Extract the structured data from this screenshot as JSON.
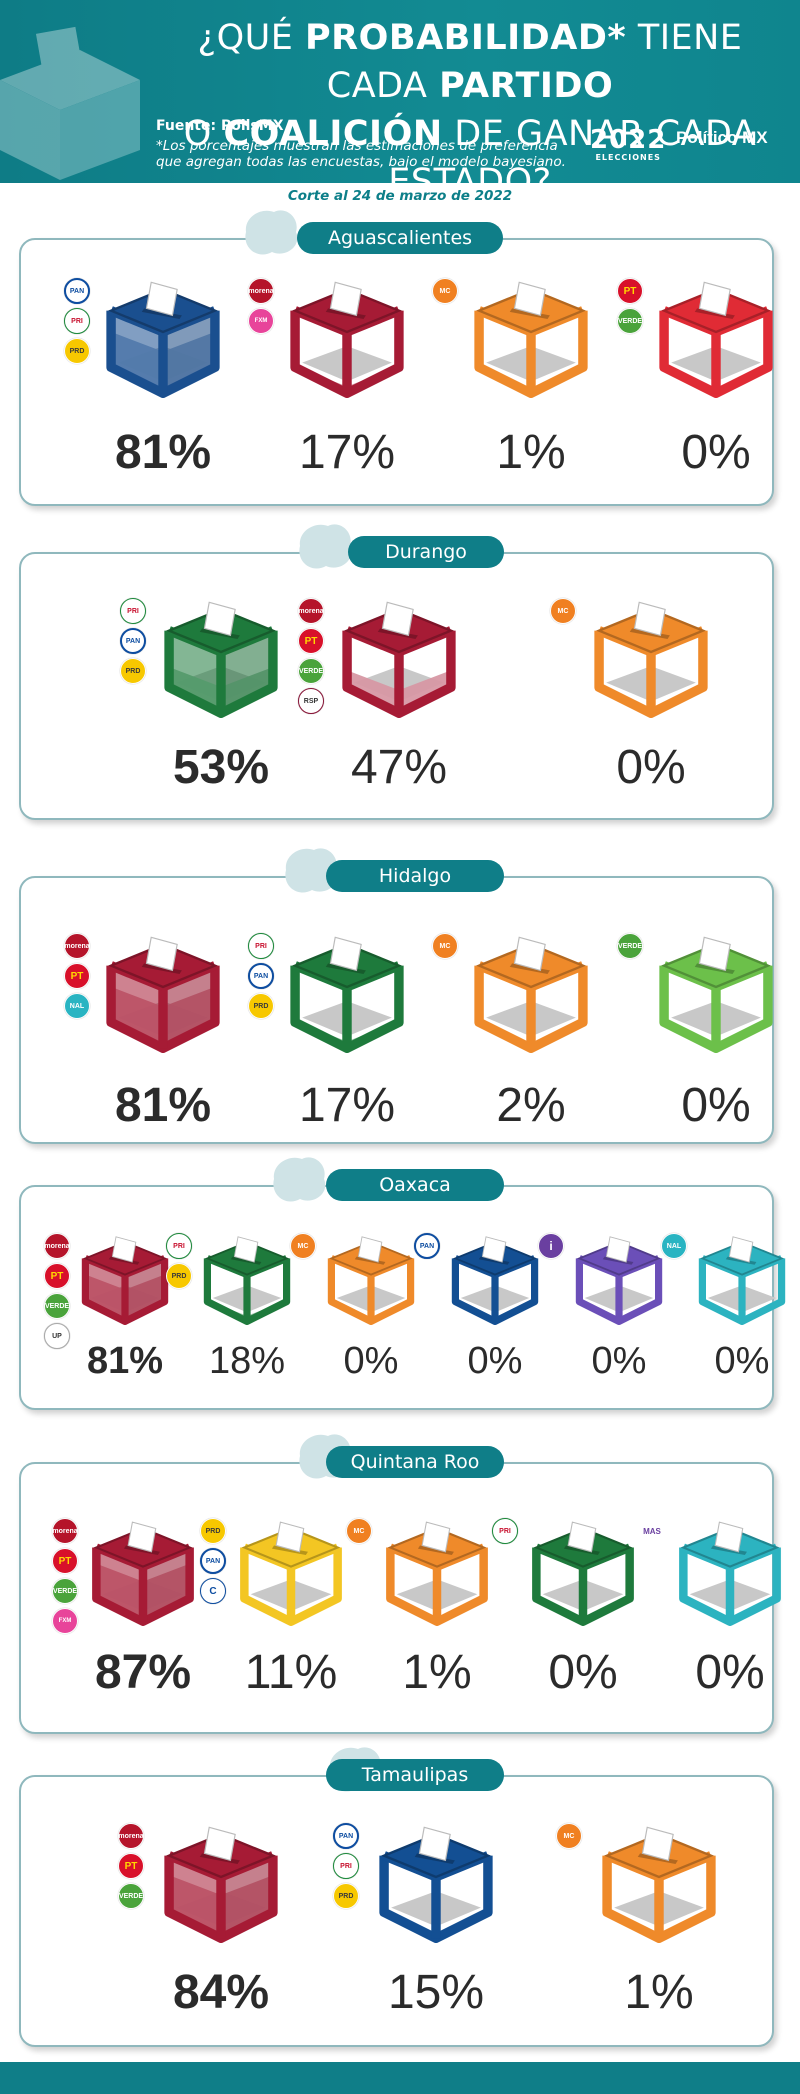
{
  "header": {
    "title_line1_a": "¿QUÉ ",
    "title_line1_b": "PROBABILIDAD*",
    "title_line1_c": " TIENE CADA ",
    "title_line1_d": "PARTIDO",
    "title_line2_a": "O ",
    "title_line2_b": "COALICIÓN",
    "title_line2_c": " DE GANAR CADA ESTADO?",
    "fuente": "Fuente: PollsMX",
    "note": "*Los porcentajes muestran las estimaciones de preferencia que agregan todas las encuestas, bajo el modelo bayesiano.",
    "logo_year": "2022",
    "logo_sub": "ELECCIONES",
    "brand": "Político MX"
  },
  "corte": "Corte al 24 de marzo de 2022",
  "colors": {
    "teal": "#0f7e88",
    "pan_blue": "#1a4f8f",
    "morena_red": "#a61b35",
    "pri_green": "#1e7a3c",
    "mc_orange": "#ef8a2a",
    "pt_red": "#e02b35",
    "verde_green": "#6cc04a",
    "pan_blue2": "#134f93",
    "purple": "#6b4fb8",
    "cyan": "#2cb3c0",
    "yellow": "#f3c623"
  },
  "states": [
    {
      "name": "Aguascalientes",
      "entries": [
        {
          "pct": "81%",
          "fill": 0.81,
          "color": "#1a4f8f",
          "logos": [
            "pan",
            "pri",
            "prd"
          ]
        },
        {
          "pct": "17%",
          "fill": 0.17,
          "color": "#a61b35",
          "logos": [
            "morena",
            "fxm"
          ]
        },
        {
          "pct": "1%",
          "fill": 0.01,
          "color": "#ef8a2a",
          "logos": [
            "mc"
          ]
        },
        {
          "pct": "0%",
          "fill": 0.0,
          "color": "#e02b35",
          "logos": [
            "pt",
            "verde"
          ]
        }
      ]
    },
    {
      "name": "Durango",
      "entries": [
        {
          "pct": "53%",
          "fill": 0.53,
          "color": "#1e7a3c",
          "logos": [
            "pri",
            "pan",
            "prd"
          ]
        },
        {
          "pct": "47%",
          "fill": 0.47,
          "color": "#a61b35",
          "logos": [
            "morena",
            "pt",
            "verde",
            "rsp"
          ]
        },
        {
          "pct": "0%",
          "fill": 0.0,
          "color": "#ef8a2a",
          "logos": [
            "mc"
          ]
        }
      ]
    },
    {
      "name": "Hidalgo",
      "entries": [
        {
          "pct": "81%",
          "fill": 0.81,
          "color": "#a61b35",
          "logos": [
            "morena",
            "pt",
            "nal"
          ]
        },
        {
          "pct": "17%",
          "fill": 0.17,
          "color": "#1e7a3c",
          "logos": [
            "pri",
            "pan",
            "prd"
          ]
        },
        {
          "pct": "2%",
          "fill": 0.02,
          "color": "#ef8a2a",
          "logos": [
            "mc"
          ]
        },
        {
          "pct": "0%",
          "fill": 0.0,
          "color": "#6cc04a",
          "logos": [
            "verde"
          ]
        }
      ]
    },
    {
      "name": "Oaxaca",
      "entries": [
        {
          "pct": "81%",
          "fill": 0.81,
          "color": "#a61b35",
          "logos": [
            "morena",
            "pt",
            "verde",
            "up"
          ]
        },
        {
          "pct": "18%",
          "fill": 0.18,
          "color": "#1e7a3c",
          "logos": [
            "pri",
            "prd"
          ]
        },
        {
          "pct": "0%",
          "fill": 0.0,
          "color": "#ef8a2a",
          "logos": [
            "mc"
          ]
        },
        {
          "pct": "0%",
          "fill": 0.0,
          "color": "#134f93",
          "logos": [
            "pan"
          ]
        },
        {
          "pct": "0%",
          "fill": 0.0,
          "color": "#6b4fb8",
          "logos": [
            "ind"
          ]
        },
        {
          "pct": "0%",
          "fill": 0.0,
          "color": "#2cb3c0",
          "logos": [
            "nal"
          ]
        }
      ]
    },
    {
      "name": "Quintana Roo",
      "entries": [
        {
          "pct": "87%",
          "fill": 0.87,
          "color": "#a61b35",
          "logos": [
            "morena",
            "pt",
            "verde",
            "fxm"
          ]
        },
        {
          "pct": "11%",
          "fill": 0.11,
          "color": "#f3c623",
          "logos": [
            "prd",
            "pan",
            "conf"
          ]
        },
        {
          "pct": "1%",
          "fill": 0.01,
          "color": "#ef8a2a",
          "logos": [
            "mc"
          ]
        },
        {
          "pct": "0%",
          "fill": 0.0,
          "color": "#1e7a3c",
          "logos": [
            "pri"
          ]
        },
        {
          "pct": "0%",
          "fill": 0.0,
          "color": "#2cb3c0",
          "logos": [
            "mas"
          ]
        }
      ]
    },
    {
      "name": "Tamaulipas",
      "entries": [
        {
          "pct": "84%",
          "fill": 0.84,
          "color": "#a61b35",
          "logos": [
            "morena",
            "pt",
            "verde"
          ]
        },
        {
          "pct": "15%",
          "fill": 0.15,
          "color": "#134f93",
          "logos": [
            "pan",
            "pri",
            "prd"
          ]
        },
        {
          "pct": "1%",
          "fill": 0.01,
          "color": "#ef8a2a",
          "logos": [
            "mc"
          ]
        }
      ]
    }
  ],
  "logo_text": {
    "pan": "PAN",
    "pri": "PRI",
    "prd": "PRD",
    "morena": "morena",
    "pt": "PT",
    "verde": "VERDE",
    "fxm": "FXM",
    "mc": "MC",
    "rsp": "RSP",
    "nal": "NAL",
    "up": "UP",
    "ind": "i",
    "conf": "C",
    "mas": "MAS"
  }
}
